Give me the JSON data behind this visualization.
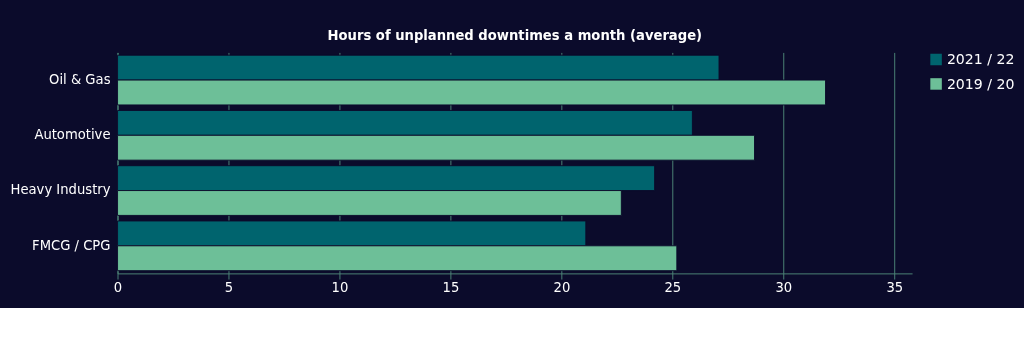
{
  "chart_data": {
    "type": "bar",
    "orientation": "horizontal",
    "title": "Hours of unplanned downtimes a month (average)",
    "categories": [
      "Oil & Gas",
      "Automotive",
      "Heavy Industry",
      "FMCG / CPG"
    ],
    "series": [
      {
        "name": "2021 / 22",
        "color": "#00646e",
        "values": [
          27.1,
          25.9,
          24.2,
          21.1
        ]
      },
      {
        "name": "2019 / 20",
        "color": "#6dbf98",
        "values": [
          31.9,
          28.7,
          22.7,
          25.2
        ]
      }
    ],
    "xlim": [
      0,
      35.8
    ],
    "xticks": [
      0,
      5,
      10,
      15,
      20,
      25,
      30,
      35
    ],
    "grid": "x",
    "legend": "right"
  }
}
